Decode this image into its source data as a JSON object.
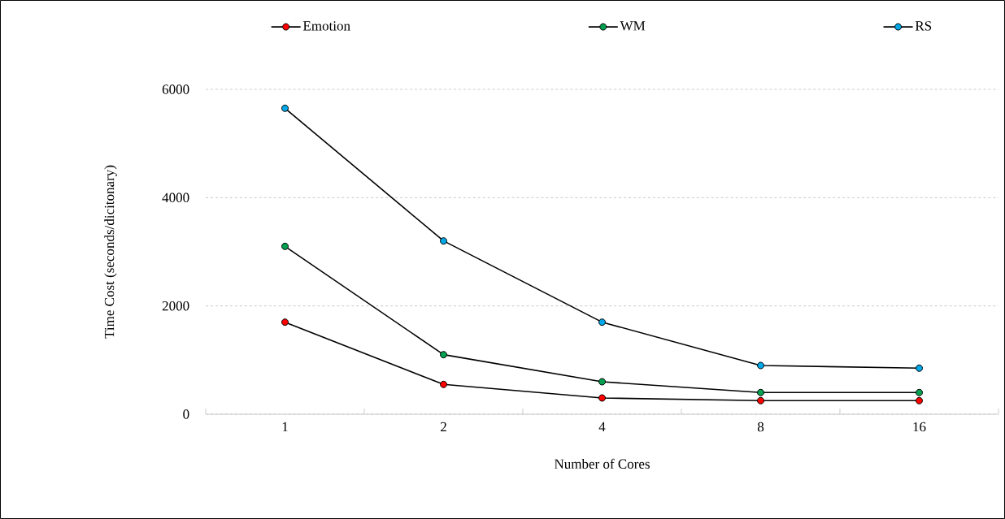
{
  "chart_data": {
    "type": "line",
    "xlabel": "Number of Cores",
    "ylabel": "Time Cost (seconds/dicitonary)",
    "categories": [
      "1",
      "2",
      "4",
      "8",
      "16"
    ],
    "series": [
      {
        "name": "Emotion",
        "color": "#ff0000",
        "values": [
          1700,
          550,
          300,
          250,
          250
        ]
      },
      {
        "name": "WM",
        "color": "#00a050",
        "values": [
          3100,
          1100,
          600,
          400,
          400
        ]
      },
      {
        "name": "RS",
        "color": "#00a8e8",
        "values": [
          5650,
          3200,
          1700,
          900,
          850
        ]
      }
    ],
    "ylim": [
      0,
      6000
    ],
    "yticks": [
      0,
      2000,
      4000,
      6000
    ],
    "grid": "y",
    "legend": "top",
    "marker": "circle",
    "line_style": "solid"
  }
}
